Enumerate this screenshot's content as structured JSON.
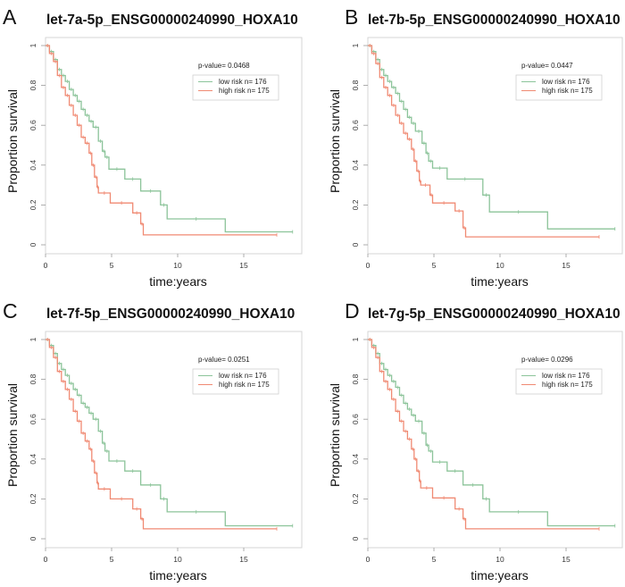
{
  "chart_data": [
    {
      "type": "line",
      "panel_letter": "A",
      "title": "let-7a-5p_ENSG00000240990_HOXA10",
      "xlabel": "time:years",
      "ylabel": "Proportion survival",
      "xlim": [
        0,
        19
      ],
      "ylim": [
        0,
        1
      ],
      "xticks": [
        "0",
        "5",
        "10",
        "15"
      ],
      "yticks": [
        "0",
        "0.2",
        "0.4",
        "0.6",
        "0.8",
        "1"
      ],
      "annotation": "p-value= 0.0468",
      "legend_position": "top-right",
      "series": [
        {
          "name": "low risk n= 176",
          "color": "#8cc49a",
          "x": [
            0,
            0.3,
            0.6,
            0.9,
            1.2,
            1.5,
            1.8,
            2.1,
            2.4,
            2.7,
            3.0,
            3.3,
            3.6,
            4.0,
            4.3,
            4.5,
            4.8,
            6.0,
            7.2,
            8.7,
            9.2,
            13.6,
            18.7
          ],
          "y": [
            1,
            0.97,
            0.93,
            0.88,
            0.85,
            0.82,
            0.78,
            0.75,
            0.72,
            0.68,
            0.65,
            0.62,
            0.59,
            0.52,
            0.47,
            0.44,
            0.38,
            0.33,
            0.27,
            0.2,
            0.13,
            0.065,
            0.065
          ]
        },
        {
          "name": "high risk n= 175",
          "color": "#f08a73",
          "x": [
            0,
            0.3,
            0.6,
            0.9,
            1.2,
            1.5,
            1.8,
            2.1,
            2.4,
            2.7,
            3.0,
            3.3,
            3.5,
            3.7,
            3.9,
            4.0,
            4.9,
            6.6,
            7.2,
            7.4,
            17.5
          ],
          "y": [
            1,
            0.96,
            0.92,
            0.85,
            0.79,
            0.75,
            0.7,
            0.65,
            0.6,
            0.54,
            0.51,
            0.46,
            0.4,
            0.34,
            0.29,
            0.26,
            0.21,
            0.16,
            0.105,
            0.05,
            0.05
          ]
        }
      ]
    },
    {
      "type": "line",
      "panel_letter": "B",
      "title": "let-7b-5p_ENSG00000240990_HOXA10",
      "xlabel": "time:years",
      "ylabel": "Proportion survival",
      "xlim": [
        0,
        19
      ],
      "ylim": [
        0,
        1
      ],
      "xticks": [
        "0",
        "5",
        "10",
        "15"
      ],
      "yticks": [
        "0",
        "0.2",
        "0.4",
        "0.6",
        "0.8",
        "1"
      ],
      "annotation": "p-value= 0.0447",
      "legend_position": "top-right",
      "series": [
        {
          "name": "low risk n= 176",
          "color": "#8cc49a",
          "x": [
            0,
            0.3,
            0.6,
            0.9,
            1.2,
            1.5,
            1.8,
            2.1,
            2.4,
            2.7,
            3.0,
            3.3,
            3.6,
            4.1,
            4.4,
            4.6,
            4.9,
            6.0,
            8.7,
            9.2,
            13.6,
            18.7
          ],
          "y": [
            1,
            0.97,
            0.93,
            0.88,
            0.85,
            0.82,
            0.79,
            0.76,
            0.72,
            0.68,
            0.64,
            0.61,
            0.57,
            0.51,
            0.46,
            0.42,
            0.385,
            0.33,
            0.25,
            0.165,
            0.08,
            0.08
          ]
        },
        {
          "name": "high risk n= 175",
          "color": "#f08a73",
          "x": [
            0,
            0.3,
            0.6,
            0.9,
            1.2,
            1.5,
            1.8,
            2.1,
            2.4,
            2.7,
            3.0,
            3.3,
            3.5,
            3.7,
            3.9,
            4.0,
            4.7,
            4.9,
            6.6,
            7.2,
            7.4,
            17.5
          ],
          "y": [
            1,
            0.96,
            0.91,
            0.84,
            0.79,
            0.75,
            0.7,
            0.65,
            0.61,
            0.56,
            0.53,
            0.48,
            0.42,
            0.37,
            0.32,
            0.3,
            0.25,
            0.21,
            0.17,
            0.085,
            0.04,
            0.04
          ]
        }
      ]
    },
    {
      "type": "line",
      "panel_letter": "C",
      "title": "let-7f-5p_ENSG00000240990_HOXA10",
      "xlabel": "time:years",
      "ylabel": "Proportion survival",
      "xlim": [
        0,
        19
      ],
      "ylim": [
        0,
        1
      ],
      "xticks": [
        "0",
        "5",
        "10",
        "15"
      ],
      "yticks": [
        "0",
        "0.2",
        "0.4",
        "0.6",
        "0.8",
        "1"
      ],
      "annotation": "p-value= 0.0251",
      "legend_position": "top-right",
      "series": [
        {
          "name": "low risk n= 176",
          "color": "#8cc49a",
          "x": [
            0,
            0.3,
            0.6,
            0.9,
            1.2,
            1.5,
            1.8,
            2.1,
            2.4,
            2.7,
            3.0,
            3.3,
            3.6,
            4.0,
            4.3,
            4.5,
            4.8,
            6.0,
            7.2,
            8.7,
            9.2,
            13.6,
            18.7
          ],
          "y": [
            1,
            0.97,
            0.93,
            0.88,
            0.85,
            0.82,
            0.78,
            0.75,
            0.72,
            0.68,
            0.66,
            0.63,
            0.6,
            0.54,
            0.48,
            0.44,
            0.39,
            0.34,
            0.27,
            0.2,
            0.135,
            0.065,
            0.065
          ]
        },
        {
          "name": "high risk n= 175",
          "color": "#f08a73",
          "x": [
            0,
            0.3,
            0.6,
            0.9,
            1.2,
            1.5,
            1.8,
            2.1,
            2.4,
            2.7,
            3.0,
            3.3,
            3.5,
            3.7,
            3.9,
            4.0,
            4.9,
            6.6,
            7.2,
            7.4,
            17.5
          ],
          "y": [
            1,
            0.96,
            0.91,
            0.84,
            0.79,
            0.75,
            0.7,
            0.64,
            0.59,
            0.53,
            0.49,
            0.45,
            0.39,
            0.33,
            0.28,
            0.25,
            0.2,
            0.15,
            0.1,
            0.05,
            0.05
          ]
        }
      ]
    },
    {
      "type": "line",
      "panel_letter": "D",
      "title": "let-7g-5p_ENSG00000240990_HOXA10",
      "xlabel": "time:years",
      "ylabel": "Proportion survival",
      "xlim": [
        0,
        19
      ],
      "ylim": [
        0,
        1
      ],
      "xticks": [
        "0",
        "5",
        "10",
        "15"
      ],
      "yticks": [
        "0",
        "0.2",
        "0.4",
        "0.6",
        "0.8",
        "1"
      ],
      "annotation": "p-value= 0.0296",
      "legend_position": "top-right",
      "series": [
        {
          "name": "low risk n= 176",
          "color": "#8cc49a",
          "x": [
            0,
            0.3,
            0.6,
            0.9,
            1.2,
            1.5,
            1.8,
            2.1,
            2.4,
            2.7,
            3.0,
            3.3,
            3.6,
            4.1,
            4.4,
            4.6,
            4.9,
            6.0,
            7.2,
            8.7,
            9.2,
            13.6,
            18.7
          ],
          "y": [
            1,
            0.97,
            0.93,
            0.88,
            0.85,
            0.82,
            0.79,
            0.76,
            0.72,
            0.68,
            0.65,
            0.62,
            0.59,
            0.53,
            0.47,
            0.44,
            0.385,
            0.34,
            0.27,
            0.2,
            0.135,
            0.065,
            0.065
          ]
        },
        {
          "name": "high risk n= 175",
          "color": "#f08a73",
          "x": [
            0,
            0.3,
            0.6,
            0.9,
            1.2,
            1.5,
            1.8,
            2.1,
            2.4,
            2.7,
            3.0,
            3.3,
            3.5,
            3.7,
            3.9,
            4.0,
            4.9,
            6.6,
            7.2,
            7.4,
            17.5
          ],
          "y": [
            1,
            0.96,
            0.91,
            0.84,
            0.79,
            0.75,
            0.7,
            0.64,
            0.59,
            0.54,
            0.5,
            0.45,
            0.4,
            0.34,
            0.29,
            0.255,
            0.205,
            0.15,
            0.1,
            0.05,
            0.05
          ]
        }
      ]
    }
  ]
}
